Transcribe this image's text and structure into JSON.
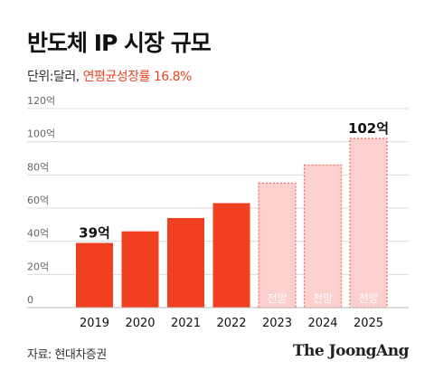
{
  "header": {
    "title": "반도체 IP 시장 규모",
    "unit_label": "단위:달러",
    "separator": ",",
    "cagr_label": "연평균성장률 16.8%"
  },
  "footer": {
    "source": "자료: 현대차증권",
    "logo": "The JoongAng"
  },
  "colors": {
    "actual": "#f0401f",
    "forecast_fill": "#fdd0d0",
    "forecast_border": "#f26a5a",
    "forecast_text": "#ffffff",
    "grid": "#dcdcdc",
    "axis_text": "#666666"
  },
  "chart_data": {
    "type": "bar",
    "title": "반도체 IP 시장 규모",
    "ylabel": "",
    "xlabel": "",
    "ylim": [
      0,
      120
    ],
    "grid": true,
    "y_ticks": [
      {
        "value": 0,
        "label": "0"
      },
      {
        "value": 20,
        "label": "20억"
      },
      {
        "value": 40,
        "label": "40억"
      },
      {
        "value": 60,
        "label": "60억"
      },
      {
        "value": 80,
        "label": "80억"
      },
      {
        "value": 100,
        "label": "100억"
      },
      {
        "value": 120,
        "label": "120억"
      }
    ],
    "categories": [
      "2019",
      "2020",
      "2021",
      "2022",
      "2023",
      "2024",
      "2025"
    ],
    "values": [
      39,
      46,
      54,
      63,
      75,
      86,
      102
    ],
    "forecast": [
      false,
      false,
      false,
      false,
      true,
      true,
      true
    ],
    "forecast_label": "전망",
    "value_labels": [
      "39억",
      "",
      "",
      "",
      "",
      "",
      "102억"
    ]
  }
}
